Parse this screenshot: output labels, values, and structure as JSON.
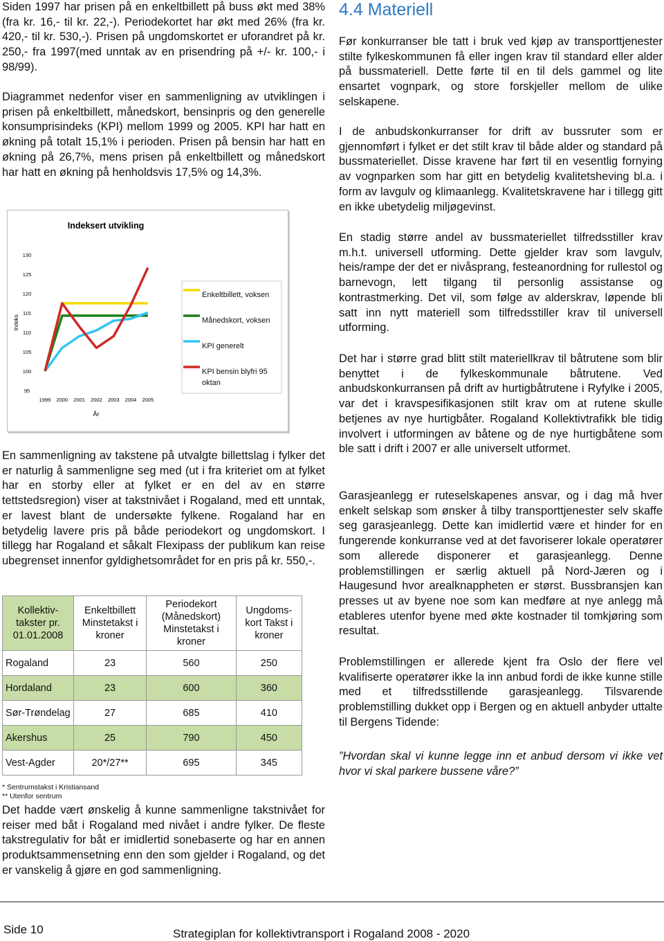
{
  "left_column": {
    "paragraphs": [
      "Siden 1997 har prisen på en enkeltbillett på buss økt med 38% (fra kr. 16,- til kr. 22,-). Periodekortet har økt med 26% (fra kr. 420,- til kr. 530,-). Prisen på ungdomskortet er uforandret på kr. 250,- fra 1997(med unntak av en prisendring på +/- kr. 100,- i 98/99).",
      "Diagrammet nedenfor viser en sammenligning av utviklingen i prisen på enkeltbillett, månedskort, bensinpris og den generelle konsumprisindeks (KPI) mellom 1999 og 2005. KPI har hatt en økning på totalt 15,1% i perioden. Prisen på bensin har hatt en økning på 26,7%, mens prisen på enkeltbillett og månedskort har hatt en økning på henholdsvis 17,5% og 14,3%.",
      "En sammenligning av takstene på utvalgte billettslag i fylker det er naturlig å sammenligne seg med (ut i fra kriteriet om at fylket har en storby eller at fylket er en del av en større tettstedsregion) viser at  takstnivået i Rogaland, med ett unntak, er lavest blant de undersøkte fylkene. Rogaland har en betydelig lavere pris på både periodekort og ungdomskort. I tillegg har Rogaland et såkalt Flexipass der publikum kan reise ubegrenset innenfor gyldighetsområdet for en pris på kr. 550,-.",
      "Det hadde vært ønskelig å kunne sammenligne takstnivået for reiser med båt i Rogaland med nivået i andre fylker. De fleste takstregulativ for båt er imidlertid sonebaserte og har en annen produktsammensetning enn den som gjelder i Rogaland, og det er vanskelig å gjøre en god sammenligning."
    ]
  },
  "chart_data": {
    "type": "line",
    "title": "Indeksert utvikling",
    "y_label": "Indeks",
    "x_label": "År",
    "categories": [
      "1999",
      "2000",
      "2001",
      "2002",
      "2003",
      "2004",
      "2005"
    ],
    "ylim": [
      95,
      130
    ],
    "yticks": [
      95,
      100,
      105,
      110,
      115,
      120,
      125,
      130
    ],
    "series": [
      {
        "name": "Enkeltbillett, voksen",
        "color": "#f5d800",
        "values": [
          100,
          117.5,
          117.5,
          117.5,
          117.5,
          117.5,
          117.5
        ]
      },
      {
        "name": "Månedskort, voksen",
        "color": "#1b7f1b",
        "values": [
          100,
          114.3,
          114.3,
          114.3,
          114.3,
          114.3,
          114.3
        ]
      },
      {
        "name": "KPI generelt",
        "color": "#33c6f0",
        "values": [
          100,
          106,
          109,
          110.5,
          113,
          113.5,
          115.1
        ]
      },
      {
        "name": "KPI bensin blyfri 95 oktan",
        "color": "#d02828",
        "values": [
          100,
          117.5,
          111.5,
          106,
          109,
          117,
          126.7
        ]
      }
    ]
  },
  "table": {
    "header": [
      "Kollektiv-takster pr. 01.01.2008",
      "Enkeltbillett Minstetakst i kroner",
      "Periodekort (Månedskort) Minstetakst i kroner",
      "Ungdoms-kort Takst i kroner"
    ],
    "rows": [
      [
        "Rogaland",
        23,
        560,
        250
      ],
      [
        "Hordaland",
        23,
        600,
        360
      ],
      [
        "Sør-Trøndelag",
        27,
        685,
        410
      ],
      [
        "Akershus",
        25,
        790,
        450
      ],
      [
        "Vest-Agder",
        "20*/27**",
        695,
        345
      ]
    ],
    "footnotes": [
      "* Sentrumstakst i Kristiansand",
      "** Utenfor sentrum"
    ]
  },
  "right_column": {
    "heading": "4.4 Materiell",
    "paragraphs": [
      "Før konkurranser ble tatt i bruk ved kjøp av transporttjenester stilte fylkeskommunen få eller ingen krav til standard eller alder på bussmateriell. Dette førte til en til dels gammel og lite ensartet vognpark, og store forskjeller mellom de ulike selskapene.",
      "I de anbudskonkurranser for drift av bussruter som er gjennomført i fylket er det stilt krav til både alder og standard på bussmateriellet. Disse kravene har ført til en vesentlig fornying av vognparken som har gitt en betydelig kvalitetsheving bl.a. i form av lavgulv og klimaanlegg. Kvalitetskravene har i tillegg gitt en ikke ubetydelig miljøgevinst.",
      "En stadig større andel av bussmateriellet tilfredsstiller krav m.h.t. universell utforming. Dette gjelder krav som lavgulv, heis/rampe der det er nivåsprang, festeanordning for rullestol og barnevogn, lett tilgang til personlig assistanse og kontrastmerking. Det vil, som følge av alderskrav, løpende bli satt inn nytt materiell som tilfredsstiller krav til universell utforming.",
      "Det har i større grad blitt stilt materiellkrav til båtrutene som blir benyttet i de fylkeskommunale båtrutene. Ved anbudskonkurransen på drift av hurtigbåtrutene i Ryfylke i 2005, var det i kravspesifikasjonen stilt krav om at rutene skulle betjenes av nye hurtigbåter. Rogaland Kollektivtrafikk ble tidig involvert i utformingen av båtene og de nye hurtigbåtene som ble satt i drift i 2007 er alle universelt utformet.",
      "Garasjeanlegg er ruteselskapenes ansvar, og i dag må hver enkelt selskap som ønsker å tilby transporttjenester selv skaffe seg garasjeanlegg. Dette kan imidlertid være et hinder for en fungerende konkurranse ved at det favoriserer lokale operatører som allerede disponerer et garasjeanlegg. Denne problemstillingen er særlig aktuell på Nord-Jæren og i Haugesund hvor arealknappheten er størst. Bussbransjen kan presses ut av byene noe som kan medføre at nye anlegg må etableres utenfor byene med økte kostnader til tomkjøring som resultat.",
      "Problemstillingen er allerede kjent fra Oslo der flere vel kvalifiserte operatører ikke la inn anbud fordi de ikke kunne stille med et tilfredsstillende garasjeanlegg. Tilsvarende problemstilling dukket opp i Bergen og en aktuell anbyder uttalte til Bergens Tidende:"
    ],
    "quote": "”Hvordan skal vi kunne legge inn et anbud dersom vi ikke vet hvor vi skal parkere bussene våre?”"
  },
  "footer": {
    "page": "Side 10",
    "title": "Strategiplan for kollektivtransport i Rogaland 2008 - 2020"
  }
}
